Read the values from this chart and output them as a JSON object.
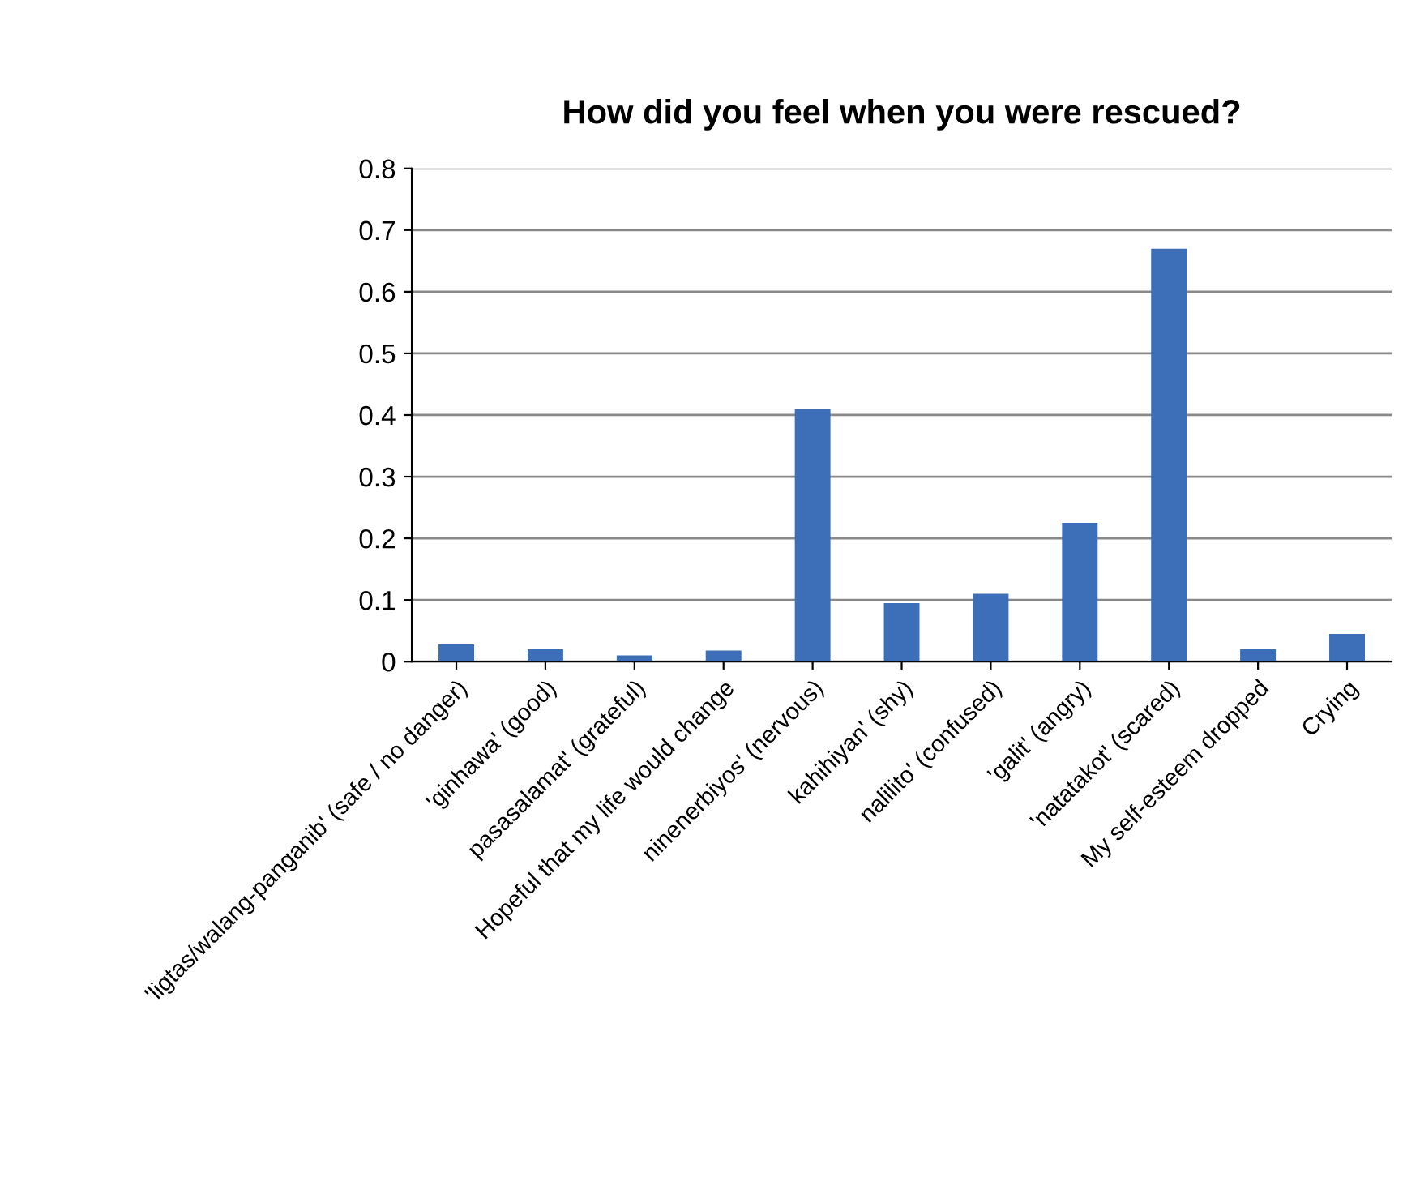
{
  "chart_data": {
    "type": "bar",
    "title": "How did you feel when you were rescued?",
    "categories": [
      "'ligtas/walang-panganib' (safe / no danger)",
      "'ginhawa' (good)",
      "pasasalamat' (grateful)",
      "Hopeful that my life would change",
      "ninenerbiyos' (nervous)",
      "kahihiyan' (shy)",
      "nalilito' (confused)",
      "'galit' (angry)",
      "'natatakot' (scared)",
      "My self-esteem dropped",
      "Crying"
    ],
    "values": [
      0.028,
      0.02,
      0.01,
      0.018,
      0.41,
      0.095,
      0.11,
      0.225,
      0.67,
      0.02,
      0.045
    ],
    "color": "#3d6fb8",
    "ylim": [
      0,
      0.8
    ],
    "yticks": [
      0,
      0.1,
      0.2,
      0.3,
      0.4,
      0.5,
      0.6,
      0.7,
      0.8
    ],
    "grid": "y",
    "legend": false
  }
}
